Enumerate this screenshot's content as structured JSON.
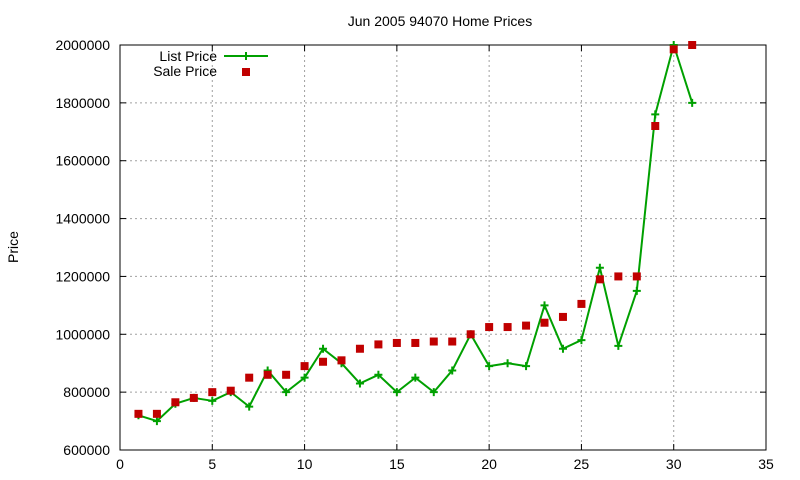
{
  "chart_data": {
    "type": "line",
    "title": "Jun 2005 94070 Home Prices",
    "xlabel": "",
    "ylabel": "Price",
    "xlim": [
      0,
      35
    ],
    "ylim": [
      600000,
      2000000
    ],
    "x_ticks": [
      0,
      5,
      10,
      15,
      20,
      25,
      30,
      35
    ],
    "y_ticks": [
      600000,
      800000,
      1000000,
      1200000,
      1400000,
      1600000,
      1800000,
      2000000
    ],
    "grid": true,
    "legend_position": "top-left",
    "x": [
      1,
      2,
      3,
      4,
      5,
      6,
      7,
      8,
      9,
      10,
      11,
      12,
      13,
      14,
      15,
      16,
      17,
      18,
      19,
      20,
      21,
      22,
      23,
      24,
      25,
      26,
      27,
      28,
      29,
      30,
      31
    ],
    "series": [
      {
        "name": "List Price",
        "style": "line-plus",
        "color": "#00a000",
        "values": [
          720000,
          700000,
          760000,
          780000,
          770000,
          800000,
          750000,
          875000,
          800000,
          850000,
          950000,
          900000,
          830000,
          860000,
          800000,
          850000,
          800000,
          875000,
          1000000,
          890000,
          900000,
          890000,
          1100000,
          950000,
          980000,
          1230000,
          960000,
          1150000,
          1760000,
          2000000,
          1800000
        ]
      },
      {
        "name": "Sale Price",
        "style": "square",
        "color": "#c00000",
        "values": [
          725000,
          725000,
          765000,
          780000,
          800000,
          805000,
          850000,
          860000,
          860000,
          890000,
          905000,
          910000,
          950000,
          965000,
          970000,
          970000,
          975000,
          975000,
          1000000,
          1025000,
          1025000,
          1030000,
          1040000,
          1060000,
          1105000,
          1190000,
          1200000,
          1200000,
          1720000,
          1985000,
          2000000
        ]
      }
    ]
  }
}
